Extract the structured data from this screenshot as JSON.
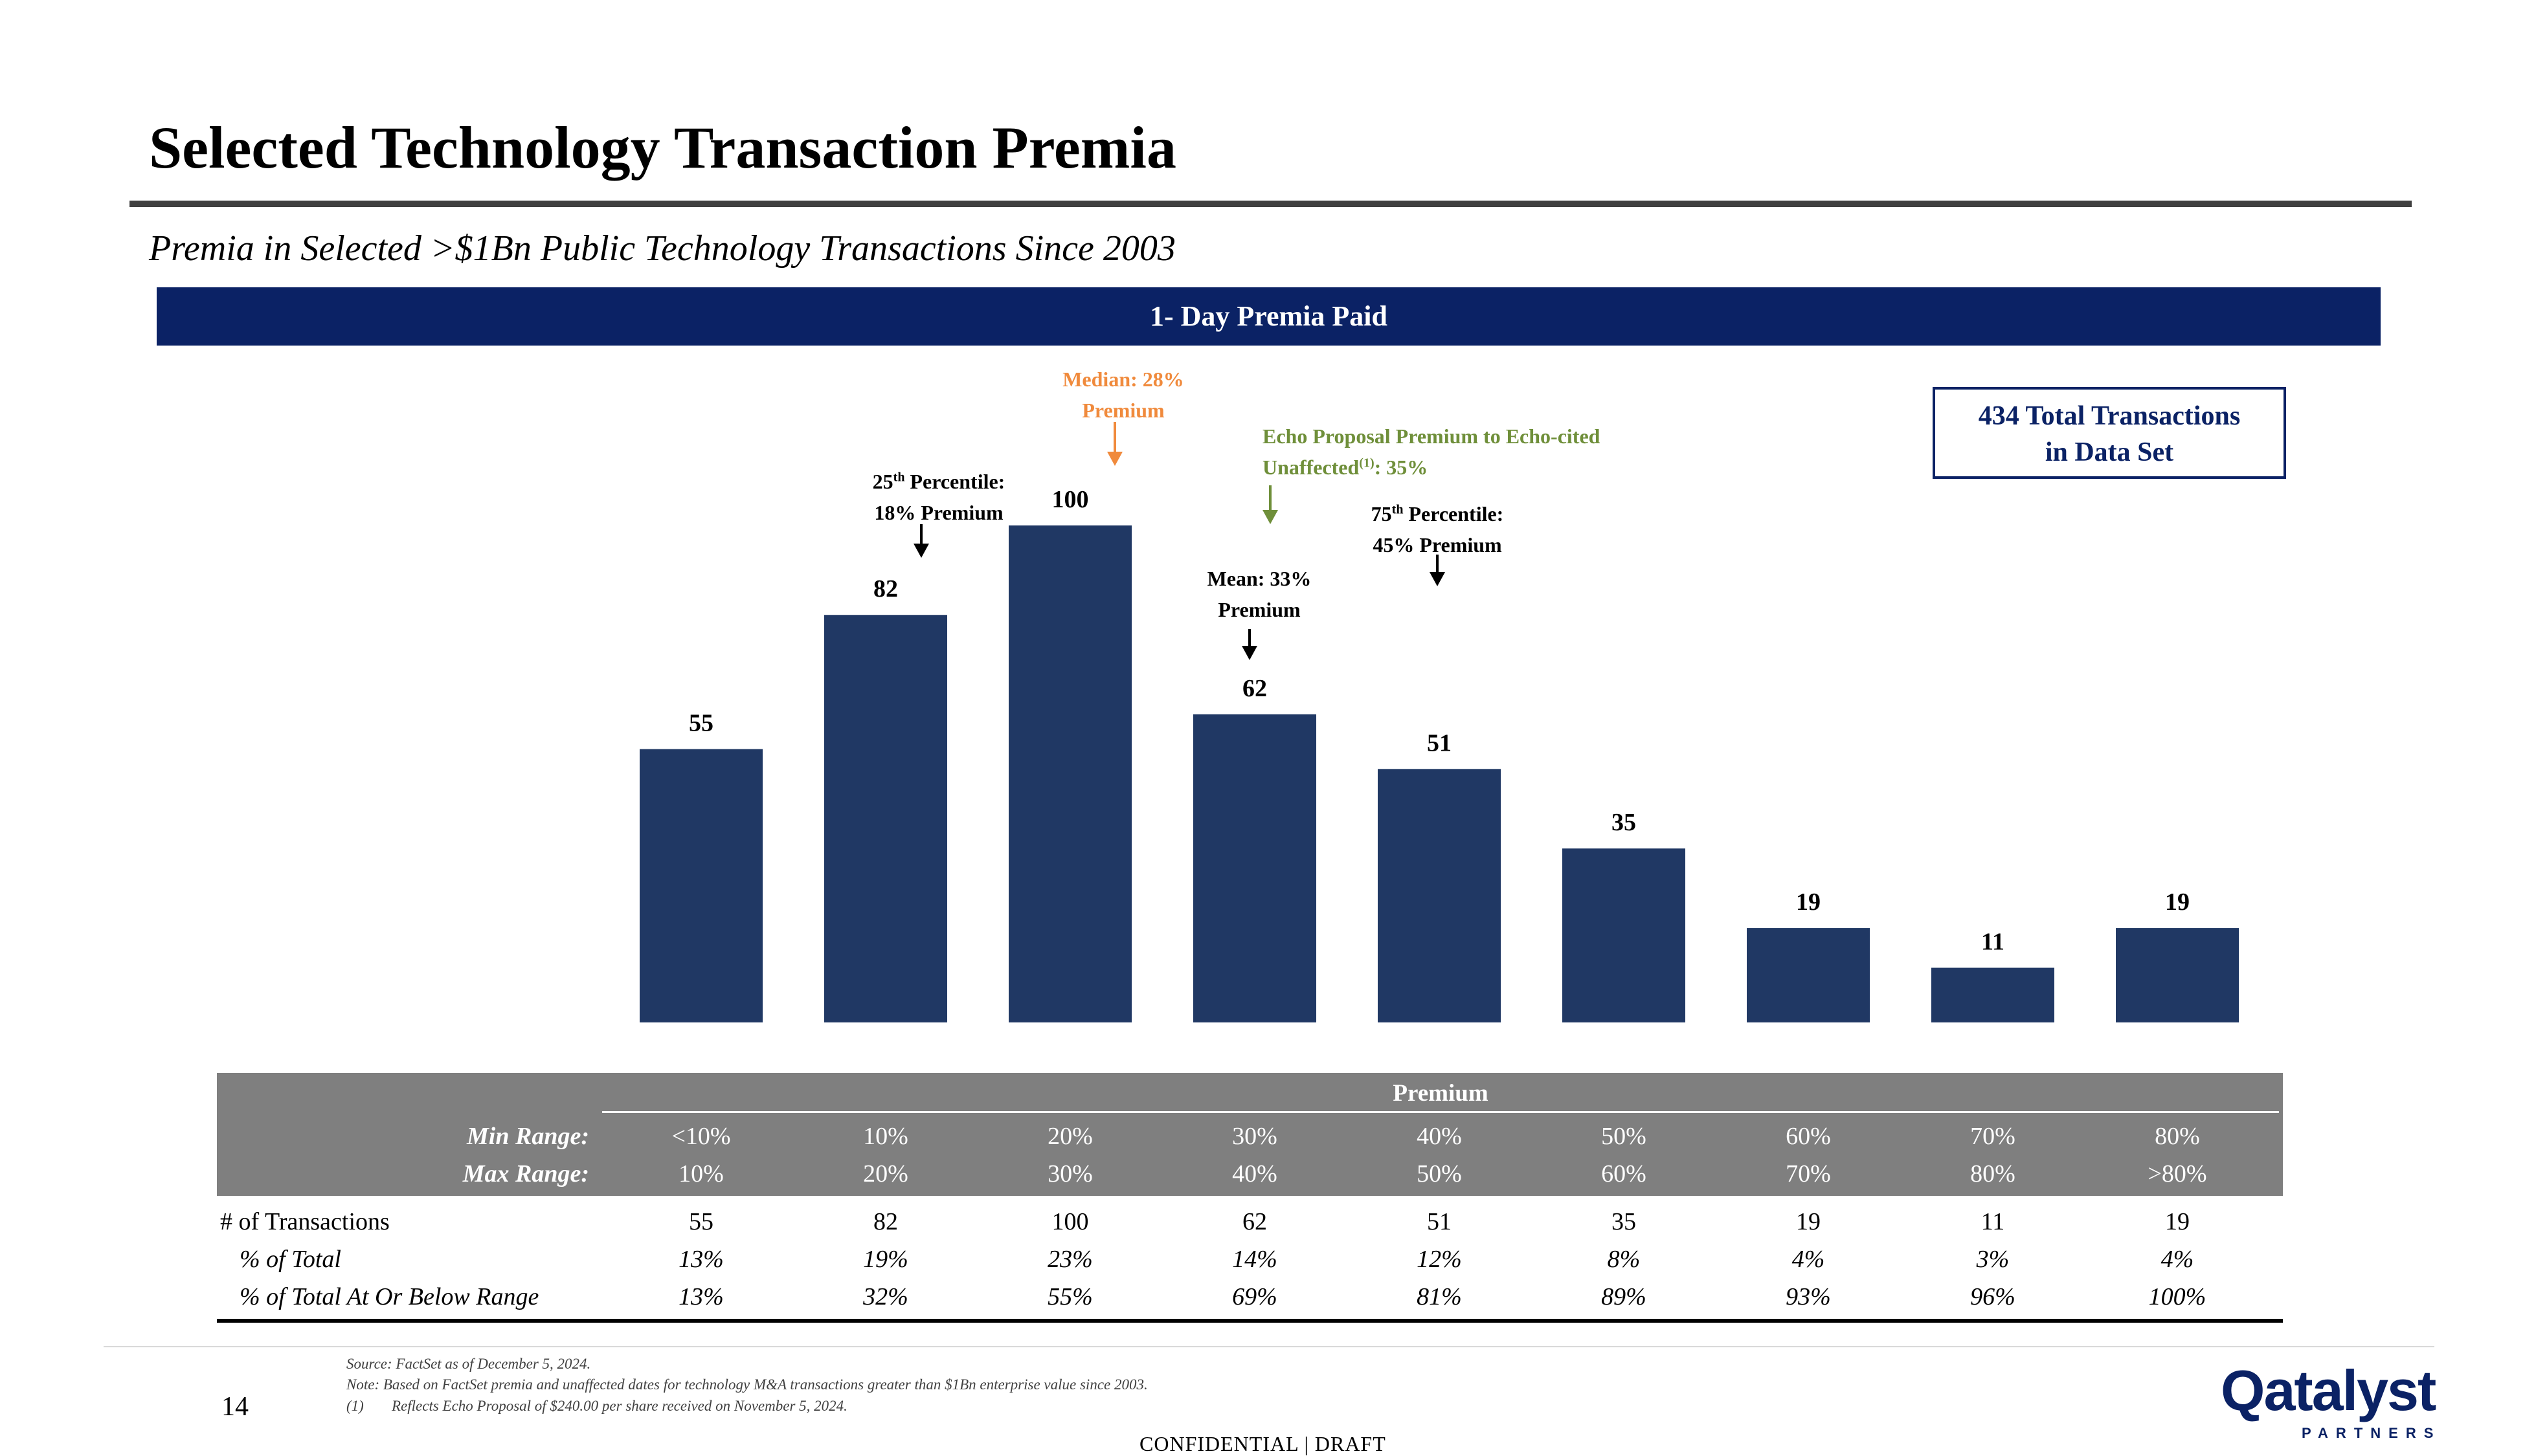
{
  "header": {
    "title": "Selected Technology Transaction Premia",
    "subtitle": "Premia in Selected >$1Bn Public Technology Transactions Since 2003",
    "banner": "1- Day Premia Paid"
  },
  "total_box": {
    "line1": "434 Total Transactions",
    "line2": "in Data Set"
  },
  "annotations": {
    "median": {
      "line1": "Median: 28%",
      "line2": "Premium"
    },
    "p25": {
      "sup": "th",
      "line1_pre": "25",
      "line1_post": " Percentile:",
      "line2": "18% Premium"
    },
    "echo": {
      "line1": "Echo Proposal Premium to Echo-cited",
      "line2_pre": "Unaffected",
      "line2_sup": "(1)",
      "line2_post": ": 35%"
    },
    "p75": {
      "sup": "th",
      "line1_pre": "75",
      "line1_post": " Percentile:",
      "line2": "45% Premium"
    },
    "mean": {
      "line1": "Mean: 33%",
      "line2": "Premium"
    }
  },
  "colors": {
    "bar": "#203864",
    "median_arrow": "#f08a3c",
    "echo": "#6f8f3a",
    "navy": "#0b2265",
    "table_header": "#7f7f7f"
  },
  "chart_data": {
    "type": "bar",
    "title": "1- Day Premia Paid",
    "categories": [
      "<10%",
      "10%",
      "20%",
      "30%",
      "40%",
      "50%",
      "60%",
      "70%",
      "80%"
    ],
    "values": [
      55,
      82,
      100,
      62,
      51,
      35,
      19,
      11,
      19
    ],
    "ylim": [
      0,
      100
    ],
    "xlabel": "Premium",
    "ylabel": "",
    "grid": false,
    "legend": "none"
  },
  "table": {
    "premium_label": "Premium",
    "min_label": "Min Range:",
    "max_label": "Max Range:",
    "min_range": [
      "<10%",
      "10%",
      "20%",
      "30%",
      "40%",
      "50%",
      "60%",
      "70%",
      "80%"
    ],
    "max_range": [
      "10%",
      "20%",
      "30%",
      "40%",
      "50%",
      "60%",
      "70%",
      "80%",
      ">80%"
    ],
    "rows": [
      {
        "label": "# of Transactions",
        "italic": false,
        "values": [
          "55",
          "82",
          "100",
          "62",
          "51",
          "35",
          "19",
          "11",
          "19"
        ]
      },
      {
        "label": "% of Total",
        "italic": true,
        "values": [
          "13%",
          "19%",
          "23%",
          "14%",
          "12%",
          "8%",
          "4%",
          "3%",
          "4%"
        ]
      },
      {
        "label": "% of Total At Or Below Range",
        "italic": true,
        "values": [
          "13%",
          "32%",
          "55%",
          "69%",
          "81%",
          "89%",
          "93%",
          "96%",
          "100%"
        ]
      }
    ]
  },
  "footer": {
    "page_number": "14",
    "source": "Source: FactSet as of December 5, 2024.",
    "note": "Note: Based on FactSet premia and unaffected dates for technology M&A transactions greater than $1Bn enterprise value since 2003.",
    "footnote_marker": "(1)",
    "footnote": "Reflects Echo Proposal of $240.00 per share received on November 5, 2024.",
    "confidential": "CONFIDENTIAL | DRAFT",
    "logo_word": "Qatalyst",
    "logo_sub": "PARTNERS"
  }
}
